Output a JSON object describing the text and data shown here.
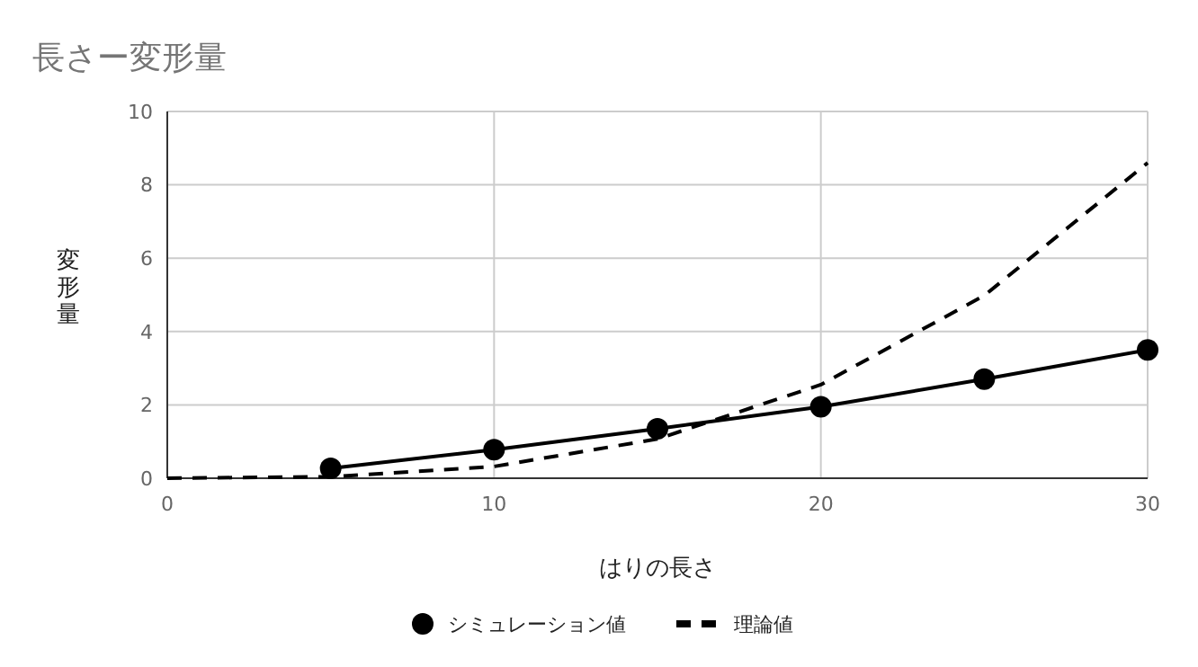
{
  "chart_data": {
    "type": "line",
    "title": "長さー変形量",
    "xlabel": "はりの長さ",
    "ylabel": "変形量",
    "x": [
      0,
      5,
      10,
      15,
      20,
      25,
      30
    ],
    "xlim": [
      0,
      30
    ],
    "xticks": [
      0,
      10,
      20,
      30
    ],
    "ylim": [
      0,
      10
    ],
    "yticks": [
      0,
      2,
      4,
      6,
      8,
      10
    ],
    "grid": true,
    "legend": "bottom",
    "series": [
      {
        "name": "シミュレーション値",
        "color": "#000000",
        "x": [
          5,
          10,
          15,
          20,
          25,
          30
        ],
        "values": [
          0.27,
          0.78,
          1.35,
          1.95,
          2.7,
          3.5
        ],
        "marker": "circle",
        "line_style": "solid"
      },
      {
        "name": "理論値",
        "color": "#000000",
        "values": [
          0,
          0.04,
          0.32,
          1.07,
          2.55,
          4.98,
          8.6
        ],
        "marker": "none",
        "line_style": "dashed"
      }
    ]
  }
}
